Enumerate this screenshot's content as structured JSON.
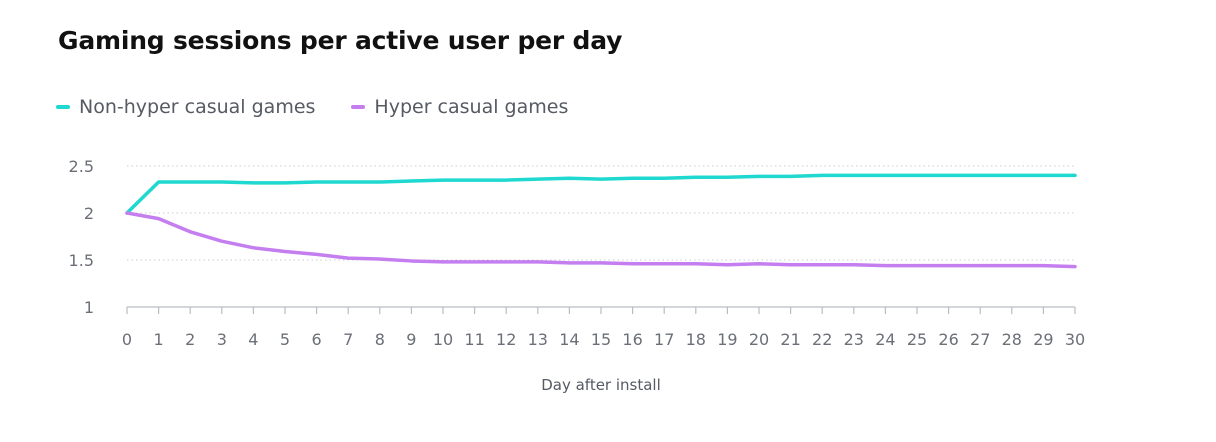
{
  "chart_data": {
    "type": "line",
    "title": "Gaming sessions per active user per day",
    "xlabel": "Day after install",
    "ylabel": "",
    "x": [
      0,
      1,
      2,
      3,
      4,
      5,
      6,
      7,
      8,
      9,
      10,
      11,
      12,
      13,
      14,
      15,
      16,
      17,
      18,
      19,
      20,
      21,
      22,
      23,
      24,
      25,
      26,
      27,
      28,
      29,
      30
    ],
    "xticks": [
      "0",
      "1",
      "2",
      "3",
      "4",
      "5",
      "6",
      "7",
      "8",
      "9",
      "10",
      "11",
      "12",
      "13",
      "14",
      "15",
      "16",
      "17",
      "18",
      "19",
      "20",
      "21",
      "22",
      "23",
      "24",
      "25",
      "26",
      "27",
      "28",
      "29",
      "30"
    ],
    "yticks": [
      "1",
      "1.5",
      "2",
      "2.5"
    ],
    "ytick_values": [
      1,
      1.5,
      2,
      2.5
    ],
    "ylim": [
      1,
      2.5
    ],
    "xlim": [
      0,
      30
    ],
    "grid": "horizontal dotted",
    "legend_position": "top-left",
    "series": [
      {
        "name": "Non-hyper casual games",
        "color": "#1fd8cf",
        "values": [
          2.0,
          2.33,
          2.33,
          2.33,
          2.32,
          2.32,
          2.33,
          2.33,
          2.33,
          2.34,
          2.35,
          2.35,
          2.35,
          2.36,
          2.37,
          2.36,
          2.37,
          2.37,
          2.38,
          2.38,
          2.39,
          2.39,
          2.4,
          2.4,
          2.4,
          2.4,
          2.4,
          2.4,
          2.4,
          2.4,
          2.4
        ]
      },
      {
        "name": "Hyper casual games",
        "color": "#c47eef",
        "values": [
          2.0,
          1.94,
          1.8,
          1.7,
          1.63,
          1.59,
          1.56,
          1.52,
          1.51,
          1.49,
          1.48,
          1.48,
          1.48,
          1.48,
          1.47,
          1.47,
          1.46,
          1.46,
          1.46,
          1.45,
          1.46,
          1.45,
          1.45,
          1.45,
          1.44,
          1.44,
          1.44,
          1.44,
          1.44,
          1.44,
          1.43
        ]
      }
    ]
  }
}
